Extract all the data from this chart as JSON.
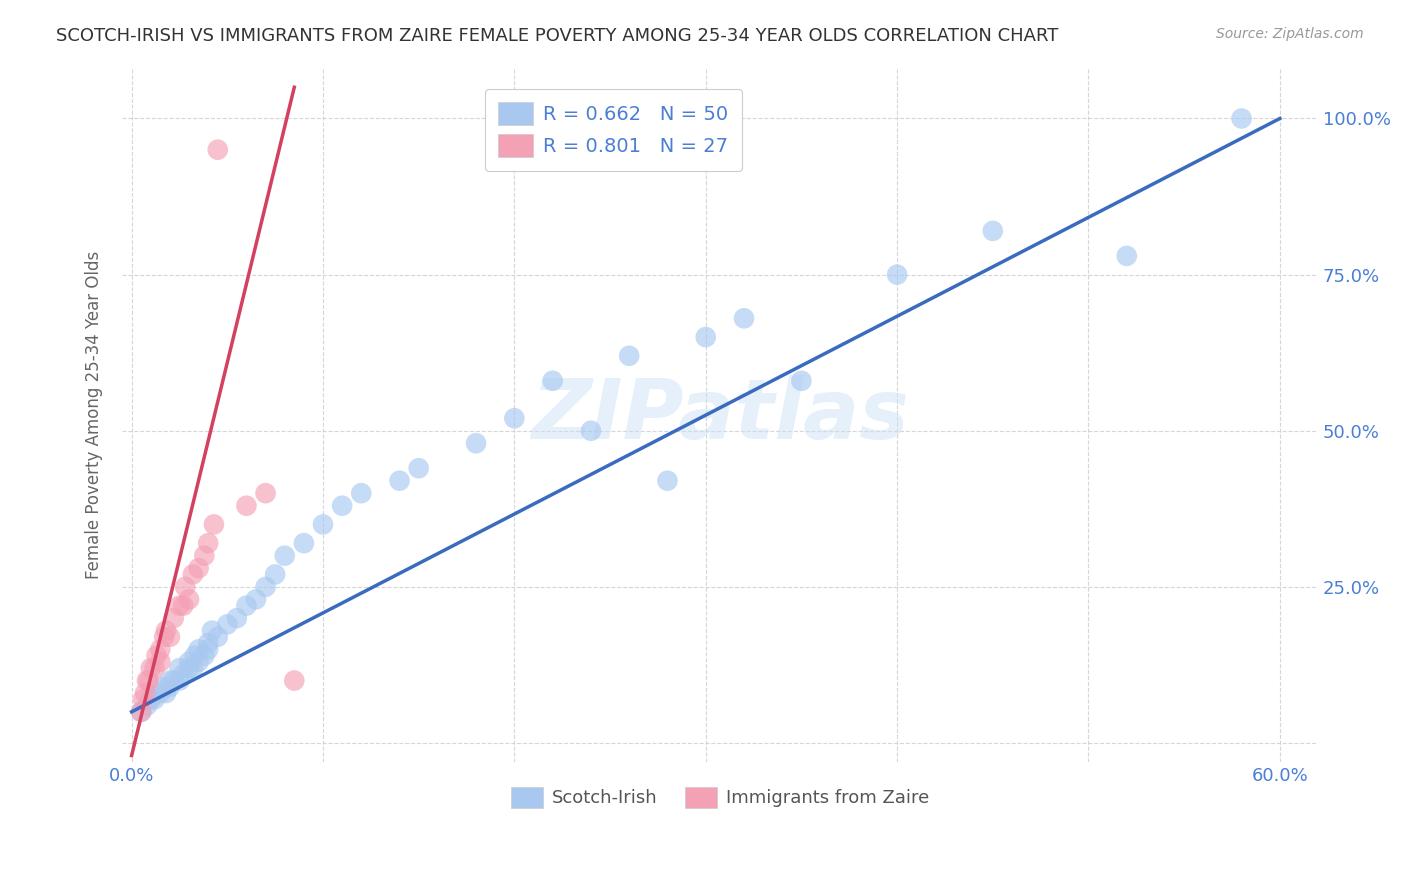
{
  "title": "SCOTCH-IRISH VS IMMIGRANTS FROM ZAIRE FEMALE POVERTY AMONG 25-34 YEAR OLDS CORRELATION CHART",
  "source": "Source: ZipAtlas.com",
  "ylabel": "Female Poverty Among 25-34 Year Olds",
  "watermark": "ZIPatlas",
  "blue_R": 0.662,
  "blue_N": 50,
  "pink_R": 0.801,
  "pink_N": 27,
  "blue_label": "Scotch-Irish",
  "pink_label": "Immigrants from Zaire",
  "blue_color": "#a8c8f0",
  "pink_color": "#f4a0b5",
  "blue_line_color": "#3a6bbf",
  "pink_line_color": "#d44060",
  "background_color": "#ffffff",
  "grid_color": "#cccccc",
  "blue_scatter_x": [
    0.005,
    0.008,
    0.01,
    0.012,
    0.015,
    0.015,
    0.018,
    0.02,
    0.02,
    0.022,
    0.025,
    0.025,
    0.027,
    0.03,
    0.03,
    0.032,
    0.033,
    0.035,
    0.035,
    0.038,
    0.04,
    0.04,
    0.042,
    0.045,
    0.05,
    0.055,
    0.06,
    0.065,
    0.07,
    0.075,
    0.08,
    0.09,
    0.1,
    0.11,
    0.12,
    0.14,
    0.15,
    0.18,
    0.2,
    0.22,
    0.24,
    0.26,
    0.28,
    0.3,
    0.32,
    0.35,
    0.4,
    0.45,
    0.52,
    0.58
  ],
  "blue_scatter_y": [
    0.05,
    0.06,
    0.07,
    0.07,
    0.08,
    0.09,
    0.08,
    0.09,
    0.1,
    0.1,
    0.1,
    0.12,
    0.11,
    0.12,
    0.13,
    0.12,
    0.14,
    0.13,
    0.15,
    0.14,
    0.15,
    0.16,
    0.18,
    0.17,
    0.19,
    0.2,
    0.22,
    0.23,
    0.25,
    0.27,
    0.3,
    0.32,
    0.35,
    0.38,
    0.4,
    0.42,
    0.44,
    0.48,
    0.52,
    0.58,
    0.5,
    0.62,
    0.42,
    0.65,
    0.68,
    0.58,
    0.75,
    0.82,
    0.78,
    1.0
  ],
  "pink_scatter_x": [
    0.005,
    0.006,
    0.007,
    0.008,
    0.009,
    0.01,
    0.012,
    0.013,
    0.015,
    0.015,
    0.017,
    0.018,
    0.02,
    0.022,
    0.025,
    0.027,
    0.028,
    0.03,
    0.032,
    0.035,
    0.038,
    0.04,
    0.043,
    0.045,
    0.06,
    0.07,
    0.085
  ],
  "pink_scatter_y": [
    0.05,
    0.07,
    0.08,
    0.1,
    0.1,
    0.12,
    0.12,
    0.14,
    0.13,
    0.15,
    0.17,
    0.18,
    0.17,
    0.2,
    0.22,
    0.22,
    0.25,
    0.23,
    0.27,
    0.28,
    0.3,
    0.32,
    0.35,
    0.95,
    0.38,
    0.4,
    0.1
  ],
  "pink_line_x_end": 0.1,
  "xlim": [
    -0.005,
    0.62
  ],
  "ylim": [
    -0.03,
    1.08
  ]
}
